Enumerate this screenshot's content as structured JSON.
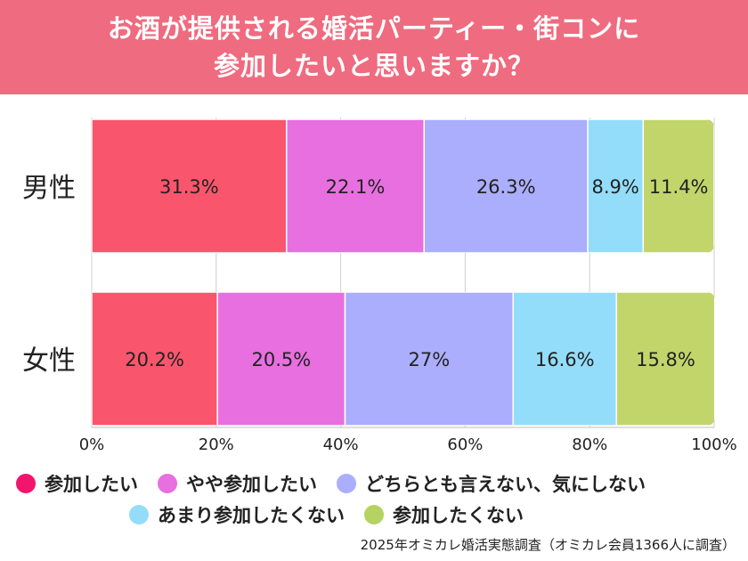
{
  "header": {
    "title_line1": "お酒が提供される婚活パーティー・街コンに",
    "title_line2": "参加したいと思いますか？"
  },
  "chart_data": {
    "type": "bar",
    "orientation": "horizontal",
    "stacked": true,
    "categories": [
      "男性",
      "女性"
    ],
    "series": [
      {
        "name": "参加したい",
        "color": "#f9566d",
        "values": [
          31.3,
          20.2
        ],
        "labels": [
          "31.3%",
          "20.2%"
        ]
      },
      {
        "name": "やや参加したい",
        "color": "#e86fdf",
        "values": [
          22.1,
          20.5
        ],
        "labels": [
          "22.1%",
          "20.5%"
        ]
      },
      {
        "name": "どちらとも言えない、気にしない",
        "color": "#abaefc",
        "values": [
          26.3,
          27
        ],
        "labels": [
          "26.3%",
          "27%"
        ]
      },
      {
        "name": "あまり参加したくない",
        "color": "#93ddfa",
        "values": [
          8.9,
          16.6
        ],
        "labels": [
          "8.9%",
          "16.6%"
        ]
      },
      {
        "name": "参加したくない",
        "color": "#c2d56a",
        "values": [
          11.4,
          15.8
        ],
        "labels": [
          "11.4%",
          "15.8%"
        ]
      }
    ],
    "xlim": [
      0,
      100
    ],
    "xticks": [
      0,
      20,
      40,
      60,
      80,
      100
    ],
    "xtick_labels": [
      "0%",
      "20%",
      "40%",
      "60%",
      "80%",
      "100%"
    ],
    "grid": true,
    "legend_position": "bottom"
  },
  "legend_dot_colors": [
    "#f2156e",
    "#e86fdf",
    "#abaefc",
    "#93ddfa",
    "#b5d362"
  ],
  "source": "2025年オミカレ婚活実態調査（オミカレ会員1366人に調査）"
}
